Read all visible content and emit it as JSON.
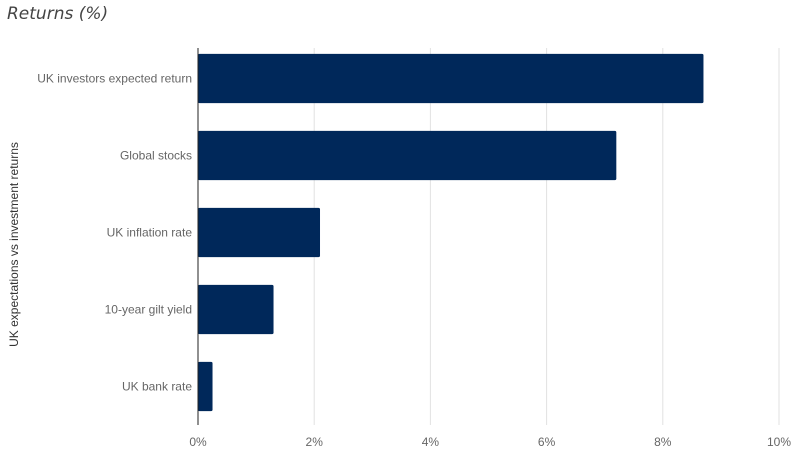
{
  "chart_data": {
    "type": "bar",
    "orientation": "horizontal",
    "title": "Returns (%)",
    "xlabel": "",
    "ylabel": "UK expectations vs investment returns",
    "categories": [
      "UK investors expected return",
      "Global stocks",
      "UK inflation rate",
      "10-year gilt yield",
      "UK bank rate"
    ],
    "values": [
      8.7,
      7.2,
      2.1,
      1.3,
      0.25
    ],
    "xlim": [
      0,
      10
    ],
    "x_ticks": [
      0,
      2,
      4,
      6,
      8,
      10
    ],
    "x_tick_labels": [
      "0%",
      "2%",
      "4%",
      "6%",
      "8%",
      "10%"
    ],
    "grid": true,
    "legend": "none",
    "colors": {
      "bar": "#00285a",
      "grid": "#e2e2e2",
      "axis": "#222222"
    }
  }
}
